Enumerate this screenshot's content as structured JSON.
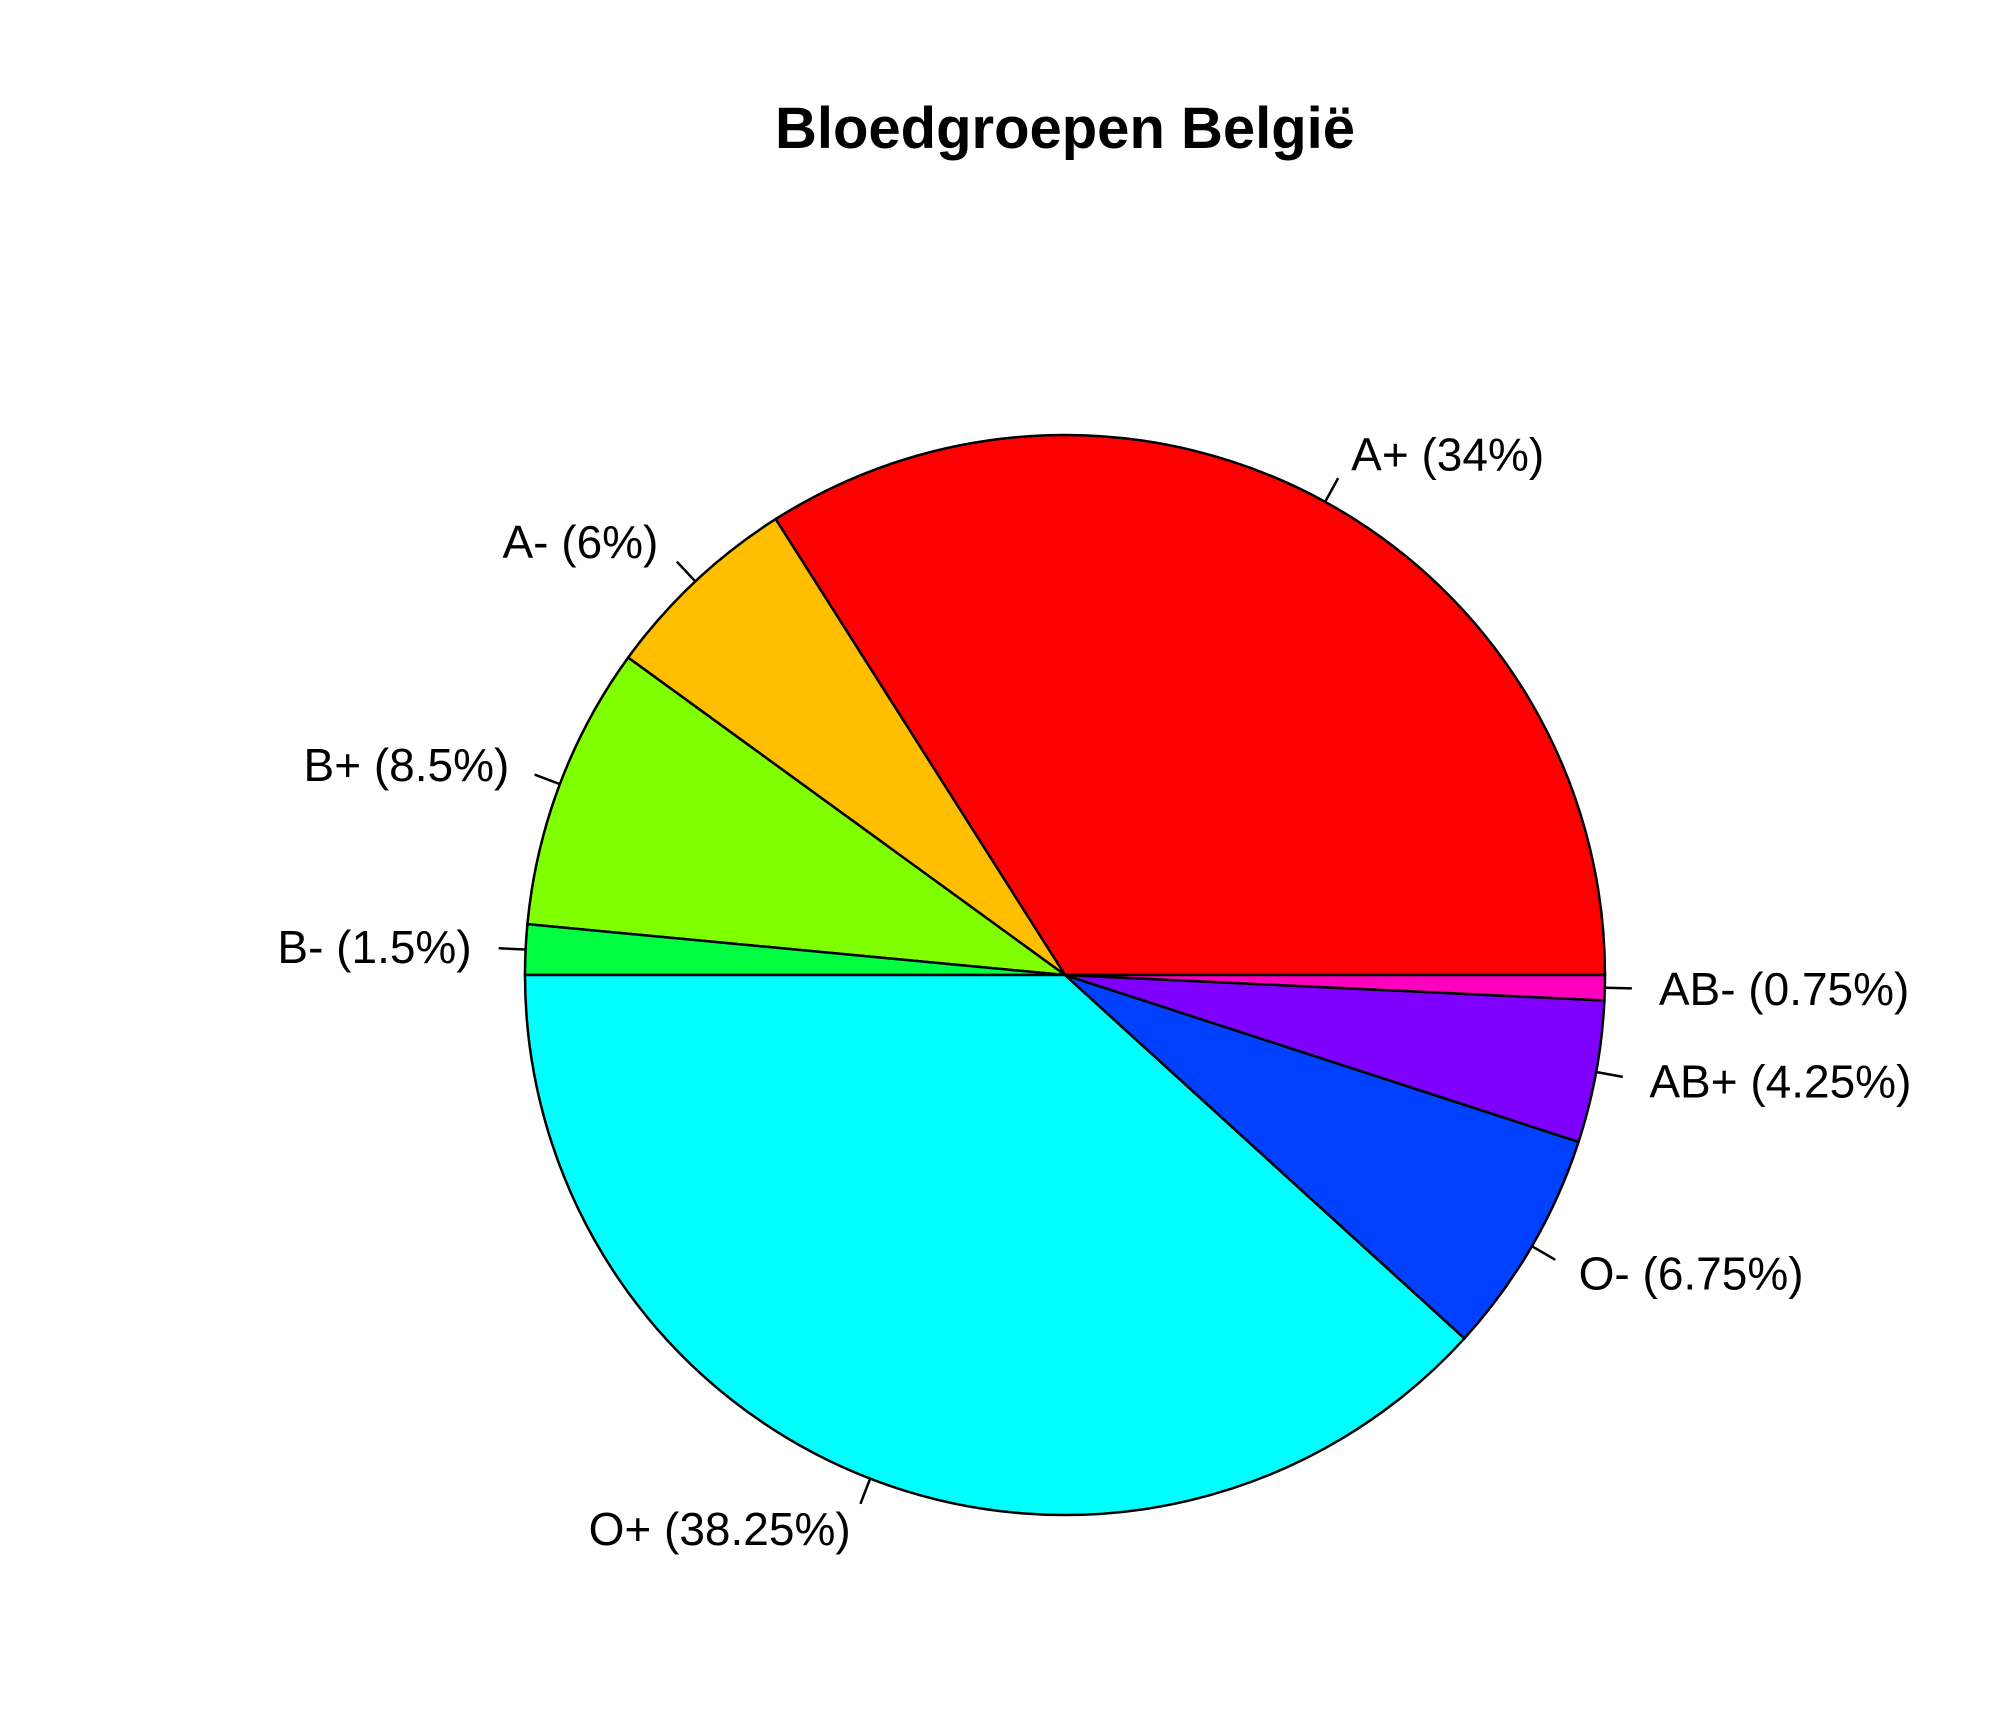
{
  "chart_data": {
    "type": "pie",
    "title": "Bloedgroepen België",
    "direction": "counterclockwise",
    "start": "3 o'clock",
    "slices": [
      {
        "label": "A+ (34%)",
        "category": "A+",
        "value": 34,
        "color": "#FF0000"
      },
      {
        "label": "A- (6%)",
        "category": "A-",
        "value": 6,
        "color": "#FFBF00"
      },
      {
        "label": "B+ (8.5%)",
        "category": "B+",
        "value": 8.5,
        "color": "#80FF00"
      },
      {
        "label": "B- (1.5%)",
        "category": "B-",
        "value": 1.5,
        "color": "#00FF40"
      },
      {
        "label": "O+ (38.25%)",
        "category": "O+",
        "value": 38.25,
        "color": "#00FFFF"
      },
      {
        "label": "O- (6.75%)",
        "category": "O-",
        "value": 6.75,
        "color": "#0040FF"
      },
      {
        "label": "AB+ (4.25%)",
        "category": "AB+",
        "value": 4.25,
        "color": "#8000FF"
      },
      {
        "label": "AB- (0.75%)",
        "category": "AB-",
        "value": 0.75,
        "color": "#FF00BF"
      }
    ]
  }
}
